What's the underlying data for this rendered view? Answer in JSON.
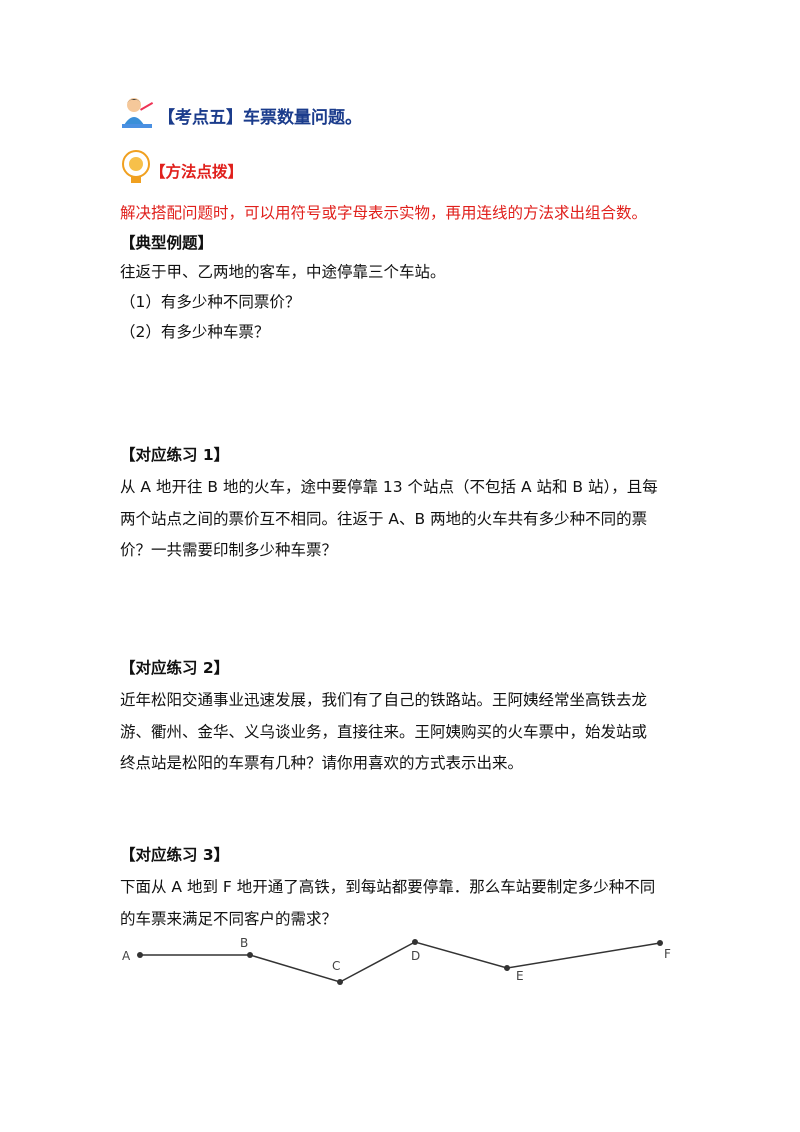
{
  "header": {
    "title": "【考点五】车票数量问题。"
  },
  "method": {
    "title": "【方法点拨】",
    "text": "解决搭配问题时，可以用符号或字母表示实物，再用连线的方法求出组合数。"
  },
  "example": {
    "title": "【典型例题】",
    "lines": [
      "往返于甲、乙两地的客车，中途停靠三个车站。",
      "（1）有多少种不同票价？",
      "（2）有多少种车票？"
    ]
  },
  "practices": [
    {
      "title": "【对应练习 1】",
      "lines": [
        "从 A 地开往 B 地的火车，途中要停靠 13 个站点（不包括 A 站和 B 站），且每",
        "两个站点之间的票价互不相同。往返于 A、B 两地的火车共有多少种不同的票",
        "价？一共需要印制多少种车票？"
      ]
    },
    {
      "title": "【对应练习 2】",
      "lines": [
        "近年松阳交通事业迅速发展，我们有了自己的铁路站。王阿姨经常坐高铁去龙",
        "游、衢州、金华、义乌谈业务，直接往来。王阿姨购买的火车票中，始发站或",
        "终点站是松阳的车票有几种？请你用喜欢的方式表示出来。"
      ]
    },
    {
      "title": "【对应练习 3】",
      "lines": [
        "下面从 A 地到 F 地开通了高铁，到每站都要停靠．那么车站要制定多少种不同",
        "的车票来满足不同客户的需求？"
      ]
    }
  ],
  "diagram": {
    "labels": [
      "A",
      "B",
      "C",
      "D",
      "E",
      "F"
    ]
  }
}
